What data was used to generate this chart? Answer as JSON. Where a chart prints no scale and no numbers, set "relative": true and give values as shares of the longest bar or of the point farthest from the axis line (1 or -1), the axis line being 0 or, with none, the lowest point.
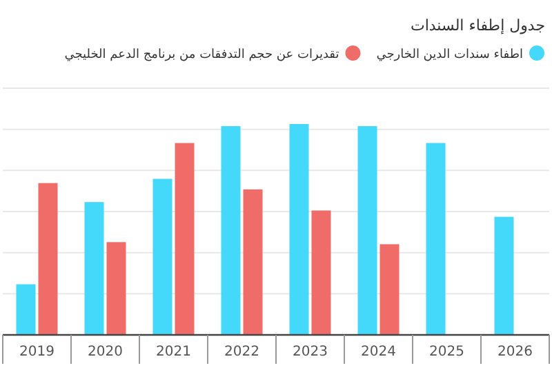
{
  "chart_data": {
    "type": "bar",
    "title": "جدول إطفاء السندات",
    "relative": true,
    "grid": "y",
    "legend": "top",
    "categories": [
      "2019",
      "2020",
      "2021",
      "2022",
      "2023",
      "2024",
      "2025",
      "2026"
    ],
    "series": [
      {
        "name": "اطفاء سندات الدين الخارجي",
        "color": "#44d8fa",
        "values": [
          0.24,
          0.63,
          0.74,
          0.99,
          1,
          0.99,
          0.91,
          0.56
        ]
      },
      {
        "name": "تقديرات عن حجم التدفقات من برنامج الدعم الخليجي",
        "color": "#ef6c68",
        "values": [
          0.72,
          0.44,
          0.91,
          0.69,
          0.59,
          0.43,
          null,
          null
        ]
      }
    ]
  }
}
